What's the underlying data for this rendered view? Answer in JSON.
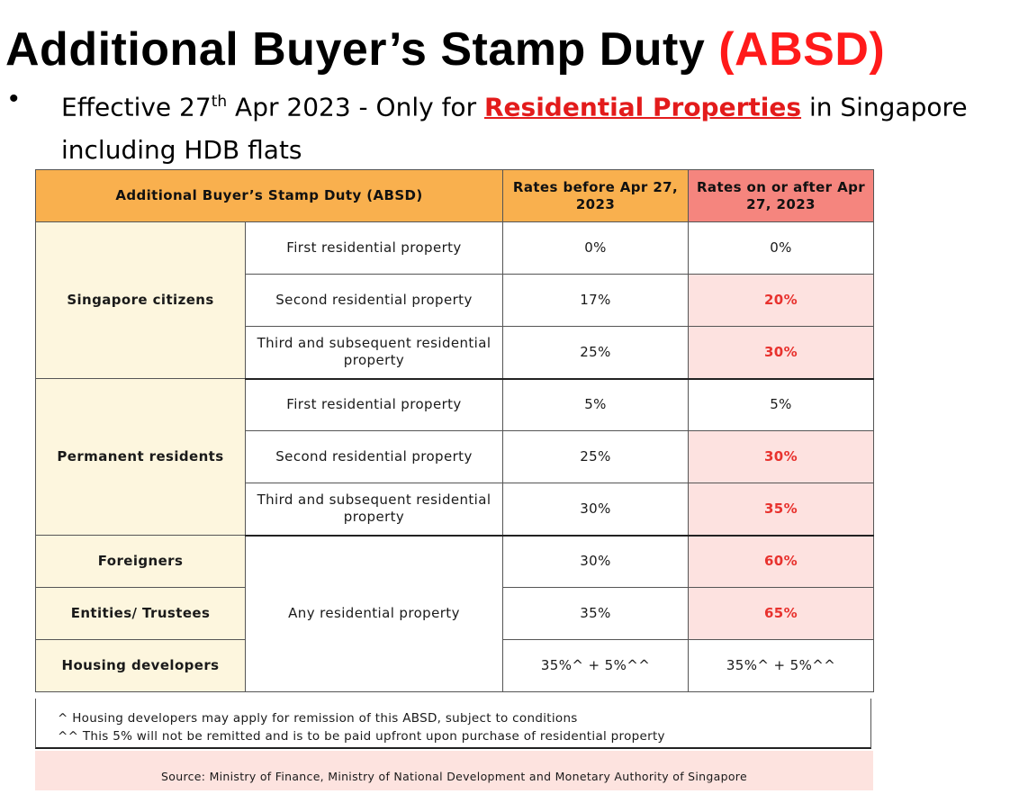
{
  "title": {
    "main": "Additional Buyer’s Stamp Duty",
    "accent": "(ABSD)"
  },
  "bullet": {
    "prefix": "Effective 27",
    "ordinal": "th",
    "middle": " Apr 2023 - Only for ",
    "emphasis": "Residential Properties",
    "suffix": " in Singapore including HDB flats"
  },
  "table": {
    "headers": {
      "category": "Additional Buyer’s Stamp Duty (ABSD)",
      "before": "Rates before Apr 27, 2023",
      "after": "Rates on or after Apr 27, 2023"
    },
    "groups": {
      "citizens": "Singapore citizens",
      "pr": "Permanent residents",
      "foreigners": "Foreigners",
      "entities": "Entities/ Trustees",
      "developers": "Housing developers"
    },
    "property_types": {
      "first": "First residential property",
      "second": "Second residential property",
      "third": "Third and subsequent residential property",
      "any": "Any residential property"
    },
    "rates": {
      "citizens": [
        {
          "before": "0%",
          "after": "0%"
        },
        {
          "before": "17%",
          "after": "20%"
        },
        {
          "before": "25%",
          "after": "30%"
        }
      ],
      "pr": [
        {
          "before": "5%",
          "after": "5%"
        },
        {
          "before": "25%",
          "after": "30%"
        },
        {
          "before": "30%",
          "after": "35%"
        }
      ],
      "foreigners": {
        "before": "30%",
        "after": "60%"
      },
      "entities": {
        "before": "35%",
        "after": "65%"
      },
      "developers": {
        "before": "35%^ + 5%^^",
        "after": "35%^ + 5%^^"
      }
    }
  },
  "notes": [
    "^ Housing developers may apply for remission of this ABSD, subject to conditions",
    "^^ This 5% will not be remitted and is to be paid upfront upon purchase of residential property"
  ],
  "source": "Source:  Ministry of Finance, Ministry of National Development  and Monetary Authority of Singapore",
  "colors": {
    "header": "#f9b04e",
    "header_new": "#f5857e",
    "group_bg": "#fdf6de",
    "highlight_bg": "#fde2e0",
    "highlight_text": "#e8322e",
    "accent": "#ff1a1a"
  }
}
